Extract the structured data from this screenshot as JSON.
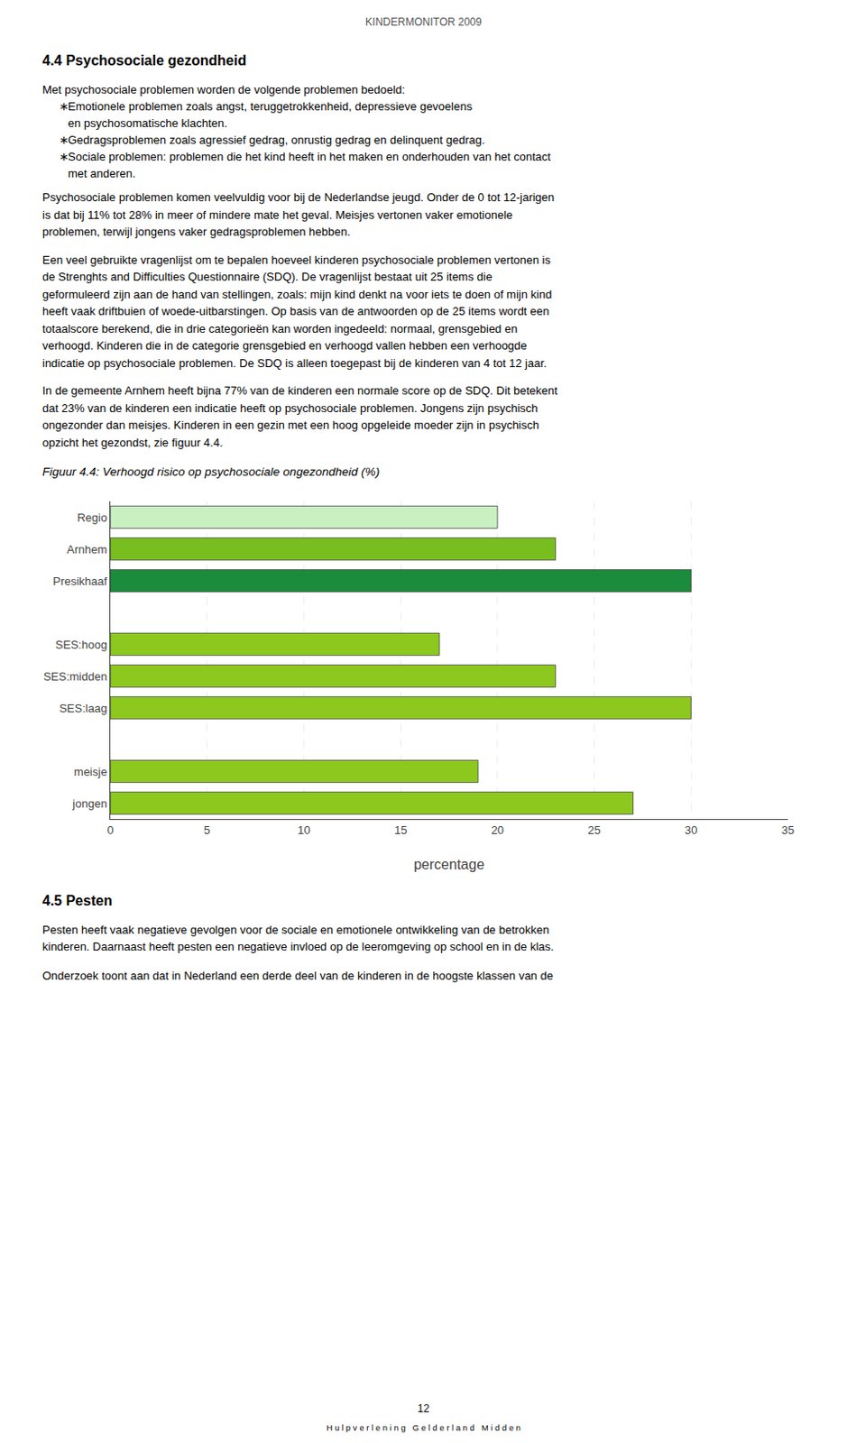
{
  "header": "KINDERMONITOR 2009",
  "section_title": "4.4 Psychosociale gezondheid",
  "intro": "Met psychosociale problemen worden de volgende problemen bedoeld:",
  "bullet": "∗",
  "bullets": [
    [
      "Emotionele problemen zoals angst, teruggetrokkenheid, depressieve gevoelens",
      "en psychosomatische klachten."
    ],
    [
      "Gedragsproblemen zoals agressief gedrag, onrustig gedrag en delinquent gedrag."
    ],
    [
      "Sociale problemen: problemen die het kind heeft in het maken en onderhouden van het contact",
      "met anderen."
    ]
  ],
  "paragraphs": [
    [
      "Psychosociale problemen komen veelvuldig voor bij de Nederlandse jeugd. Onder de 0 tot 12-jarigen",
      "is dat bij 11% tot 28% in meer of mindere mate het geval. Meisjes vertonen vaker emotionele",
      "problemen, terwijl jongens vaker gedragsproblemen hebben."
    ],
    [
      "Een veel gebruikte vragenlijst om te bepalen hoeveel kinderen psychosociale problemen vertonen is",
      "de Strenghts and Difficulties Questionnaire (SDQ). De vragenlijst bestaat uit 25 items die",
      "geformuleerd zijn aan de hand van stellingen, zoals: mijn kind denkt na voor iets te doen of mijn kind",
      "heeft vaak driftbuien of woede-uitbarstingen. Op basis van de antwoorden op de 25 items wordt een",
      "totaalscore berekend, die in drie categorieën kan worden ingedeeld: normaal, grensgebied en",
      "verhoogd. Kinderen die in de categorie grensgebied en verhoogd vallen hebben een verhoogde",
      "indicatie op psychosociale problemen. De SDQ is alleen toegepast bij de kinderen van 4 tot 12 jaar."
    ],
    [
      "In de gemeente Arnhem heeft bijna 77% van de kinderen een normale score op de SDQ. Dit betekent",
      "dat 23% van de kinderen een indicatie heeft op psychosociale problemen. Jongens zijn psychisch",
      "ongezonder dan meisjes. Kinderen in een gezin met een hoog opgeleide moeder zijn in psychisch",
      "opzicht het gezondst, zie figuur 4.4."
    ]
  ],
  "chart_data": {
    "type": "bar",
    "orientation": "horizontal",
    "title": "Figuur 4.4: Verhoogd risico op psychosociale ongezondheid (%)",
    "categories": [
      "Regio",
      "Arnhem",
      "Presikhaaf",
      null,
      "SES:hoog",
      "SES:midden",
      "SES:laag",
      null,
      "meisje",
      "jongen"
    ],
    "values": [
      20,
      23,
      30,
      null,
      17,
      23,
      30,
      null,
      19,
      27
    ],
    "colors": [
      "#c8f0c0",
      "#78be1e",
      "#1a8c3c",
      null,
      "#8cc81e",
      "#8cc81e",
      "#8cc81e",
      null,
      "#8cc81e",
      "#8cc81e"
    ],
    "xlabel": "percentage",
    "xlim": [
      0,
      35
    ],
    "xticks": [
      0,
      5,
      10,
      15,
      20,
      25,
      30,
      35
    ],
    "grid": true
  },
  "section2_title": "4.5 Pesten",
  "section2_text": [
    "Pesten heeft vaak negatieve gevolgen voor de sociale en emotionele ontwikkeling van de betrokken",
    "kinderen. Daarnaast heeft pesten een negatieve invloed op de leeromgeving op school en in de klas."
  ],
  "section2_text2": "Onderzoek toont aan dat in Nederland een derde deel van de kinderen in de hoogste klassen van de",
  "footer_page": "12",
  "footer_text": "H u l p v e r l e n i n g   G e l d e r l a n d   M i d d e n"
}
